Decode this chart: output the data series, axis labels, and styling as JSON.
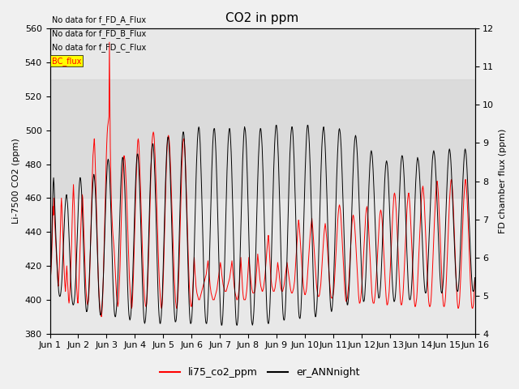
{
  "title": "CO2 in ppm",
  "ylabel_left": "Li-7500 CO2 (ppm)",
  "ylabel_right": "FD chamber flux (ppm)",
  "ylim_left": [
    380,
    560
  ],
  "ylim_right": [
    4.0,
    12.0
  ],
  "yticks_left": [
    380,
    400,
    420,
    440,
    460,
    480,
    500,
    520,
    540,
    560
  ],
  "yticks_right": [
    4.0,
    5.0,
    6.0,
    7.0,
    8.0,
    9.0,
    10.0,
    11.0,
    12.0
  ],
  "xtick_labels": [
    "Jun 1",
    "Jun 2",
    "Jun 3",
    "Jun 4",
    "Jun 5",
    "Jun 6",
    "Jun 7",
    "Jun 8",
    "Jun 9",
    "Jun 10",
    "Jun 11",
    "Jun 12",
    "Jun 13",
    "Jun 14",
    "Jun 15",
    "Jun 16"
  ],
  "legend_labels": [
    "li75_co2_ppm",
    "er_ANNnight"
  ],
  "no_data_text": [
    "No data for f_FD_A_Flux",
    "No data for f_FD_B_Flux",
    "No data for f_FD_C_Flux"
  ],
  "bc_flux_label": "BC_flux",
  "gray_band": [
    460,
    530
  ],
  "fig_facecolor": "#f0f0f0",
  "ax_facecolor": "#e8e8e8",
  "red_line_color": "#ff0000",
  "black_line_color": "#000000",
  "red_y": [
    405,
    410,
    415,
    420,
    425,
    435,
    445,
    455,
    450,
    460,
    455,
    445,
    440,
    435,
    430,
    425,
    420,
    415,
    410,
    408,
    412,
    418,
    425,
    435,
    445,
    455,
    460,
    455,
    448,
    440,
    432,
    425,
    418,
    412,
    408,
    405,
    410,
    415,
    420,
    415,
    410,
    405,
    400,
    398,
    400,
    405,
    410,
    418,
    425,
    435,
    445,
    455,
    462,
    468,
    462,
    455,
    445,
    435,
    425,
    415,
    408,
    404,
    400,
    398,
    402,
    408,
    415,
    422,
    430,
    438,
    445,
    452,
    458,
    462,
    460,
    452,
    444,
    436,
    428,
    420,
    413,
    407,
    403,
    400,
    398,
    397,
    398,
    400,
    404,
    410,
    418,
    428,
    438,
    448,
    458,
    468,
    477,
    485,
    488,
    492,
    495,
    490,
    482,
    473,
    463,
    453,
    443,
    433,
    423,
    413,
    407,
    402,
    398,
    395,
    393,
    391,
    390,
    392,
    396,
    402,
    410,
    420,
    430,
    440,
    450,
    462,
    473,
    484,
    492,
    498,
    502,
    504,
    506,
    508,
    552,
    520,
    490,
    475,
    462,
    453,
    447,
    442,
    438,
    435,
    432,
    428,
    423,
    417,
    412,
    407,
    403,
    400,
    398,
    396,
    398,
    402,
    407,
    413,
    420,
    430,
    440,
    450,
    460,
    468,
    475,
    480,
    483,
    485,
    484,
    482,
    478,
    473,
    467,
    460,
    452,
    444,
    436,
    428,
    420,
    413,
    408,
    404,
    400,
    397,
    395,
    396,
    400,
    406,
    413,
    422,
    430,
    440,
    450,
    460,
    469,
    477,
    484,
    490,
    494,
    495,
    493,
    488,
    481,
    474,
    466,
    458,
    449,
    440,
    432,
    424,
    417,
    411,
    406,
    402,
    399,
    397,
    396,
    396,
    398,
    402,
    408,
    415,
    423,
    432,
    442,
    452,
    462,
    472,
    480,
    487,
    493,
    496,
    498,
    499,
    498,
    495,
    490,
    484,
    477,
    470,
    462,
    453,
    444,
    436,
    428,
    420,
    414,
    408,
    404,
    400,
    397,
    395,
    395,
    398,
    403,
    410,
    418,
    427,
    437,
    448,
    458,
    468,
    477,
    484,
    490,
    494,
    496,
    497,
    496,
    493,
    489,
    483,
    476,
    468,
    460,
    452,
    444,
    436,
    428,
    420,
    413,
    408,
    403,
    399,
    397,
    395,
    395,
    397,
    401,
    406,
    413,
    421,
    430,
    440,
    450,
    460,
    470,
    478,
    484,
    489,
    493,
    495,
    495,
    493,
    489,
    483,
    475,
    467,
    458,
    449,
    440,
    431,
    422,
    415,
    408,
    403,
    399,
    397,
    396,
    396,
    398,
    402,
    408,
    415,
    420,
    425,
    420,
    415,
    412,
    408,
    406,
    404,
    403,
    402,
    401,
    400,
    400,
    400,
    401,
    402,
    403,
    404,
    405,
    406,
    407,
    408,
    409,
    410,
    411,
    412,
    413,
    414,
    415,
    417,
    419,
    421,
    423,
    420,
    417,
    414,
    411,
    408,
    406,
    404,
    403,
    402,
    401,
    400,
    400,
    400,
    400,
    401,
    402,
    403,
    404,
    405,
    406,
    408,
    410,
    412,
    414,
    416,
    418,
    420,
    422,
    420,
    418,
    415,
    413,
    411,
    409,
    408,
    407,
    406,
    405,
    405,
    405,
    405,
    406,
    407,
    408,
    409,
    410,
    411,
    412,
    413,
    415,
    417,
    419,
    421,
    423,
    420,
    417,
    414,
    411,
    408,
    406,
    404,
    403,
    402,
    401,
    400,
    400,
    401,
    402,
    404,
    406,
    410,
    415,
    420,
    425,
    420,
    415,
    410,
    406,
    403,
    401,
    400,
    400,
    400,
    400,
    401,
    403,
    405,
    408,
    412,
    416,
    421,
    425,
    422,
    419,
    416,
    413,
    410,
    408,
    406,
    405,
    404,
    404,
    404,
    404,
    405,
    406,
    408,
    411,
    415,
    419,
    423,
    427,
    424,
    421,
    418,
    415,
    412,
    410,
    408,
    407,
    406,
    405,
    405,
    406,
    407,
    409,
    411,
    413,
    416,
    420,
    423,
    427,
    430,
    433,
    436,
    438,
    435,
    430,
    425,
    420,
    415,
    412,
    410,
    408,
    407,
    406,
    405,
    405,
    405,
    406,
    407,
    409,
    411,
    413,
    416,
    419,
    422,
    420,
    418,
    416,
    413,
    411,
    409,
    407,
    406,
    405,
    405,
    405,
    406,
    407,
    408,
    410,
    412,
    414,
    416,
    418,
    420,
    422,
    420,
    418,
    416,
    414,
    412,
    410,
    408,
    406,
    405,
    404,
    404,
    404,
    405,
    406,
    407,
    409,
    411,
    415,
    420,
    424,
    428,
    432,
    436,
    440,
    444,
    447,
    445,
    442,
    438,
    434,
    430,
    426,
    422,
    418,
    414,
    411,
    408,
    406,
    404,
    403,
    403,
    404,
    405,
    407,
    410,
    414,
    418,
    422,
    426,
    430,
    434,
    438,
    441,
    444,
    446,
    448,
    445,
    442,
    438,
    434,
    430,
    426,
    422,
    418,
    414,
    410,
    407,
    405,
    403,
    402,
    402,
    402,
    403,
    405,
    407,
    409,
    413,
    417,
    422,
    426,
    430,
    434,
    438,
    441,
    443,
    445,
    443,
    440,
    437,
    434,
    430,
    426,
    422,
    418,
    414,
    410,
    407,
    404,
    402,
    401,
    401,
    401,
    402,
    403,
    405,
    408,
    412,
    417,
    422,
    427,
    432,
    437,
    442,
    446,
    450,
    453,
    455,
    456,
    455,
    453,
    450,
    446,
    441,
    436,
    430,
    425,
    420,
    415,
    410,
    406,
    403,
    400,
    399,
    399,
    400,
    401,
    404,
    407,
    410,
    415,
    420,
    425,
    430,
    435,
    440,
    444,
    447,
    449,
    450,
    449,
    447,
    445,
    441,
    437,
    432,
    427,
    422,
    417,
    412,
    407,
    403,
    400,
    398,
    398,
    399,
    401,
    404,
    407,
    411,
    415,
    420,
    425,
    430,
    435,
    440,
    445,
    449,
    452,
    454,
    455,
    453,
    450,
    446,
    441,
    436,
    430,
    425,
    419,
    414,
    409,
    404,
    401,
    399,
    398,
    398,
    398,
    400,
    402,
    405,
    409,
    413,
    418,
    423,
    428,
    433,
    438,
    443,
    447,
    450,
    452,
    453,
    452,
    450,
    447,
    443,
    438,
    433,
    427,
    422,
    416,
    411,
    406,
    402,
    399,
    397,
    397,
    398,
    400,
    402,
    405,
    410,
    415,
    421,
    427,
    433,
    439,
    445,
    450,
    455,
    459,
    462,
    463,
    462,
    460,
    456,
    452,
    446,
    440,
    434,
    428,
    422,
    416,
    410,
    405,
    401,
    398,
    397,
    397,
    398,
    400,
    403,
    407,
    412,
    418,
    424,
    430,
    436,
    442,
    448,
    453,
    457,
    460,
    462,
    463,
    461,
    458,
    454,
    449,
    443,
    437,
    430,
    424,
    418,
    412,
    406,
    401,
    398,
    396,
    396,
    397,
    399,
    401,
    405,
    410,
    416,
    422,
    428,
    434,
    440,
    446,
    452,
    457,
    461,
    464,
    466,
    467,
    465,
    462,
    458,
    452,
    446,
    440,
    433,
    427,
    420,
    414,
    408,
    403,
    399,
    397,
    396,
    396,
    397,
    399,
    403,
    408,
    414,
    420,
    427,
    434,
    441,
    447,
    453,
    458,
    463,
    467,
    469,
    470,
    468,
    465,
    461,
    455,
    449,
    443,
    436,
    429,
    422,
    416,
    410,
    404,
    400,
    397,
    396,
    396,
    397,
    399,
    402,
    407,
    413,
    419,
    426,
    433,
    440,
    447,
    453,
    459,
    463,
    467,
    470,
    471,
    470,
    467,
    463,
    458,
    451,
    445,
    438,
    431,
    424,
    417,
    411,
    405,
    400,
    397,
    395,
    395,
    396,
    398,
    402,
    407,
    413,
    419,
    426,
    433,
    440,
    447,
    453,
    459,
    463,
    467,
    470,
    471,
    469,
    466,
    462,
    457,
    451,
    444,
    437,
    430,
    423,
    416,
    410,
    404,
    399,
    396,
    395,
    395,
    396,
    398,
    402,
    407,
    413
  ],
  "black_y": [
    400,
    408,
    416,
    425,
    435,
    447,
    459,
    468,
    472,
    468,
    460,
    452,
    444,
    437,
    430,
    424,
    418,
    413,
    409,
    405,
    403,
    402,
    402,
    403,
    405,
    408,
    412,
    418,
    424,
    430,
    437,
    444,
    450,
    455,
    459,
    461,
    462,
    460,
    457,
    453,
    447,
    440,
    433,
    426,
    419,
    412,
    407,
    403,
    400,
    398,
    397,
    397,
    398,
    400,
    403,
    408,
    413,
    420,
    428,
    436,
    444,
    452,
    459,
    465,
    469,
    472,
    472,
    470,
    466,
    461,
    454,
    446,
    437,
    428,
    419,
    411,
    404,
    399,
    395,
    393,
    393,
    394,
    397,
    400,
    405,
    411,
    418,
    426,
    434,
    442,
    450,
    458,
    464,
    469,
    472,
    474,
    473,
    470,
    466,
    460,
    452,
    444,
    435,
    426,
    417,
    409,
    402,
    397,
    393,
    391,
    391,
    392,
    394,
    398,
    403,
    409,
    416,
    424,
    433,
    442,
    451,
    460,
    468,
    474,
    479,
    482,
    483,
    482,
    479,
    475,
    468,
    461,
    452,
    442,
    432,
    422,
    413,
    405,
    399,
    394,
    391,
    390,
    390,
    392,
    395,
    399,
    405,
    412,
    420,
    429,
    438,
    448,
    457,
    465,
    472,
    478,
    482,
    484,
    484,
    482,
    478,
    472,
    465,
    457,
    448,
    438,
    428,
    418,
    409,
    401,
    395,
    391,
    389,
    388,
    389,
    391,
    395,
    400,
    406,
    413,
    421,
    430,
    440,
    450,
    459,
    467,
    474,
    480,
    484,
    486,
    486,
    484,
    480,
    474,
    467,
    459,
    450,
    440,
    430,
    420,
    410,
    402,
    395,
    390,
    387,
    386,
    387,
    389,
    393,
    398,
    404,
    412,
    420,
    430,
    440,
    450,
    460,
    468,
    476,
    482,
    487,
    490,
    492,
    492,
    490,
    486,
    480,
    473,
    464,
    454,
    444,
    433,
    422,
    412,
    403,
    396,
    391,
    388,
    386,
    386,
    388,
    391,
    396,
    402,
    410,
    419,
    429,
    439,
    450,
    460,
    469,
    477,
    484,
    490,
    494,
    496,
    496,
    494,
    490,
    484,
    477,
    468,
    459,
    449,
    438,
    427,
    417,
    407,
    399,
    393,
    389,
    387,
    387,
    388,
    391,
    396,
    402,
    410,
    419,
    429,
    440,
    451,
    461,
    471,
    480,
    487,
    493,
    497,
    499,
    499,
    497,
    493,
    486,
    479,
    470,
    460,
    449,
    438,
    427,
    416,
    406,
    398,
    392,
    388,
    386,
    386,
    387,
    390,
    395,
    401,
    409,
    418,
    428,
    439,
    450,
    461,
    471,
    480,
    487,
    494,
    498,
    501,
    502,
    501,
    497,
    492,
    484,
    475,
    466,
    455,
    444,
    433,
    422,
    411,
    402,
    395,
    390,
    387,
    386,
    386,
    388,
    392,
    398,
    405,
    414,
    423,
    434,
    445,
    456,
    466,
    476,
    484,
    491,
    496,
    500,
    501,
    501,
    498,
    493,
    487,
    479,
    470,
    460,
    449,
    438,
    427,
    416,
    406,
    398,
    391,
    387,
    385,
    385,
    387,
    391,
    397,
    404,
    413,
    423,
    434,
    445,
    456,
    467,
    476,
    484,
    491,
    496,
    499,
    501,
    501,
    498,
    493,
    487,
    479,
    469,
    459,
    448,
    436,
    425,
    414,
    404,
    396,
    390,
    386,
    385,
    385,
    387,
    390,
    396,
    403,
    412,
    422,
    432,
    443,
    454,
    465,
    474,
    483,
    490,
    496,
    500,
    502,
    501,
    499,
    495,
    489,
    481,
    472,
    462,
    451,
    440,
    428,
    417,
    407,
    399,
    392,
    388,
    386,
    385,
    386,
    389,
    393,
    399,
    407,
    416,
    425,
    436,
    447,
    457,
    467,
    476,
    484,
    490,
    495,
    499,
    501,
    501,
    499,
    495,
    490,
    482,
    474,
    464,
    454,
    443,
    432,
    421,
    411,
    402,
    395,
    390,
    387,
    386,
    386,
    388,
    392,
    398,
    406,
    415,
    425,
    435,
    446,
    457,
    467,
    477,
    485,
    492,
    497,
    501,
    503,
    503,
    501,
    497,
    491,
    484,
    475,
    466,
    456,
    445,
    434,
    423,
    413,
    404,
    397,
    392,
    389,
    388,
    388,
    390,
    394,
    400,
    408,
    417,
    427,
    438,
    448,
    459,
    469,
    478,
    486,
    492,
    497,
    500,
    502,
    502,
    500,
    496,
    490,
    483,
    474,
    465,
    455,
    444,
    434,
    423,
    413,
    405,
    398,
    393,
    390,
    389,
    389,
    391,
    395,
    401,
    408,
    416,
    426,
    436,
    447,
    457,
    467,
    476,
    484,
    491,
    497,
    501,
    503,
    503,
    501,
    497,
    492,
    485,
    477,
    468,
    458,
    448,
    437,
    427,
    417,
    408,
    401,
    395,
    392,
    390,
    390,
    392,
    395,
    400,
    407,
    415,
    424,
    434,
    444,
    455,
    465,
    474,
    482,
    490,
    495,
    499,
    501,
    502,
    500,
    497,
    492,
    486,
    478,
    470,
    461,
    451,
    441,
    431,
    422,
    413,
    406,
    400,
    396,
    394,
    393,
    394,
    397,
    401,
    407,
    415,
    423,
    432,
    442,
    452,
    462,
    471,
    479,
    486,
    492,
    497,
    500,
    501,
    500,
    498,
    494,
    489,
    482,
    474,
    466,
    457,
    448,
    438,
    429,
    421,
    414,
    407,
    402,
    399,
    397,
    397,
    399,
    402,
    406,
    412,
    419,
    427,
    436,
    445,
    454,
    463,
    471,
    478,
    485,
    490,
    494,
    496,
    497,
    496,
    493,
    489,
    484,
    478,
    471,
    463,
    455,
    447,
    438,
    430,
    422,
    415,
    409,
    404,
    401,
    399,
    399,
    400,
    403,
    408,
    413,
    420,
    427,
    435,
    444,
    452,
    460,
    468,
    474,
    480,
    484,
    487,
    488,
    487,
    485,
    481,
    476,
    470,
    463,
    456,
    448,
    440,
    432,
    424,
    417,
    411,
    406,
    403,
    401,
    401,
    402,
    405,
    408,
    413,
    419,
    426,
    434,
    442,
    450,
    457,
    464,
    470,
    475,
    479,
    481,
    482,
    481,
    479,
    475,
    470,
    464,
    457,
    450,
    442,
    434,
    427,
    420,
    413,
    408,
    404,
    401,
    399,
    399,
    400,
    402,
    406,
    411,
    417,
    424,
    431,
    439,
    447,
    455,
    462,
    469,
    475,
    480,
    483,
    485,
    485,
    484,
    481,
    477,
    472,
    466,
    459,
    451,
    443,
    435,
    428,
    421,
    414,
    408,
    404,
    401,
    400,
    400,
    401,
    403,
    407,
    412,
    418,
    424,
    431,
    439,
    447,
    455,
    462,
    469,
    474,
    479,
    482,
    484,
    483,
    482,
    479,
    475,
    470,
    464,
    458,
    451,
    444,
    437,
    430,
    423,
    417,
    412,
    408,
    405,
    404,
    404,
    405,
    408,
    412,
    417,
    423,
    430,
    437,
    444,
    451,
    458,
    465,
    471,
    477,
    482,
    485,
    487,
    488,
    487,
    485,
    482,
    477,
    472,
    466,
    459,
    452,
    445,
    437,
    430,
    423,
    417,
    412,
    408,
    405,
    404,
    404,
    406,
    409,
    413,
    419,
    425,
    432,
    440,
    448,
    455,
    463,
    470,
    476,
    481,
    485,
    488,
    489,
    488,
    486,
    482,
    477,
    471,
    465,
    458,
    451,
    444,
    437,
    430,
    424,
    418,
    413,
    409,
    406,
    405,
    405,
    406,
    409,
    413,
    419,
    426,
    433,
    440,
    448,
    455,
    463,
    470,
    476,
    481,
    485,
    488,
    489,
    488,
    486,
    482,
    477,
    471,
    465,
    458,
    451,
    444,
    437,
    430,
    424,
    418,
    413,
    409,
    406,
    405,
    405,
    406,
    409,
    413
  ]
}
